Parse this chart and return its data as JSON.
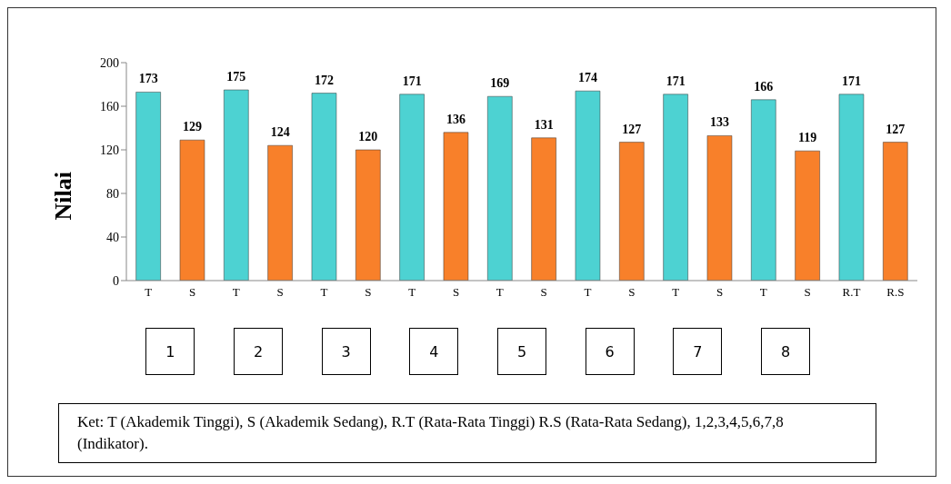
{
  "chart_data": {
    "type": "bar",
    "ylabel": "Nilai",
    "categories": [
      "T",
      "S",
      "T",
      "S",
      "T",
      "S",
      "T",
      "S",
      "T",
      "S",
      "T",
      "S",
      "T",
      "S",
      "T",
      "S",
      "R.T",
      "R.S"
    ],
    "values": [
      173,
      129,
      175,
      124,
      172,
      120,
      171,
      136,
      169,
      131,
      174,
      127,
      171,
      133,
      166,
      119,
      171,
      127
    ],
    "colors": [
      "#4dd2d2",
      "#f8802a",
      "#4dd2d2",
      "#f8802a",
      "#4dd2d2",
      "#f8802a",
      "#4dd2d2",
      "#f8802a",
      "#4dd2d2",
      "#f8802a",
      "#4dd2d2",
      "#f8802a",
      "#4dd2d2",
      "#f8802a",
      "#4dd2d2",
      "#f8802a",
      "#4dd2d2",
      "#f8802a"
    ],
    "ylim": [
      0,
      200
    ],
    "yticks": [
      0,
      40,
      80,
      120,
      160,
      200
    ],
    "grid": false,
    "data_labels": true,
    "annotations": [
      "1",
      "2",
      "3",
      "4",
      "5",
      "6",
      "7",
      "8",
      "Ket: T (Akademik Tinggi), S (Akademik Sedang), R.T (Rata-Rata Tinggi) R.S (Rata-Rata Sedang), 1,2,3,4,5,6,7,8 (Indikator)."
    ]
  }
}
